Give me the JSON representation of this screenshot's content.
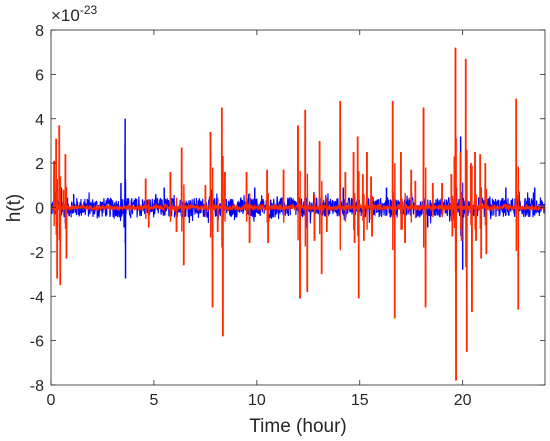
{
  "chart_data": {
    "type": "line",
    "xlabel": "Time (hour)",
    "ylabel": "h(t)",
    "exponent_label": "×10",
    "exponent": "-23",
    "xlim": [
      0,
      24
    ],
    "ylim": [
      -8,
      8
    ],
    "xticks": [
      0,
      5,
      10,
      15,
      20
    ],
    "yticks": [
      -8,
      -6,
      -4,
      -2,
      0,
      2,
      4,
      6,
      8
    ],
    "grid": false,
    "noise_amplitude": {
      "blue": 0.45,
      "red": 0.1
    },
    "series": [
      {
        "color": "#0000ff",
        "spikes": [
          {
            "x": 0.2,
            "y": 0.7
          },
          {
            "x": 0.5,
            "y": 0.9
          },
          {
            "x": 0.7,
            "y": -0.7
          },
          {
            "x": 1.1,
            "y": 0.6
          },
          {
            "x": 3.4,
            "y": 1.1
          },
          {
            "x": 3.55,
            "y": -0.9
          },
          {
            "x": 3.6,
            "y": 4.0
          },
          {
            "x": 3.62,
            "y": -3.2
          },
          {
            "x": 5.5,
            "y": 0.9
          },
          {
            "x": 7.8,
            "y": 0.8
          },
          {
            "x": 9.9,
            "y": 0.9
          },
          {
            "x": 12.4,
            "y": -0.9
          },
          {
            "x": 14.2,
            "y": 0.9
          },
          {
            "x": 16.3,
            "y": 0.9
          },
          {
            "x": 18.3,
            "y": -0.9
          },
          {
            "x": 19.0,
            "y": 0.8
          },
          {
            "x": 19.7,
            "y": 0.9
          },
          {
            "x": 19.9,
            "y": 3.2
          },
          {
            "x": 20.0,
            "y": -2.8
          },
          {
            "x": 20.2,
            "y": 1.5
          },
          {
            "x": 22.1,
            "y": 0.9
          },
          {
            "x": 23.5,
            "y": 0.9
          }
        ]
      },
      {
        "color": "#ff2a00",
        "spikes": [
          {
            "x": 0.15,
            "y": 2.1
          },
          {
            "x": 0.25,
            "y": 3.1
          },
          {
            "x": 0.3,
            "y": -3.2
          },
          {
            "x": 0.4,
            "y": 3.7
          },
          {
            "x": 0.45,
            "y": -3.5
          },
          {
            "x": 0.6,
            "y": 0.8
          },
          {
            "x": 0.7,
            "y": 2.4
          },
          {
            "x": 0.75,
            "y": -2.3
          },
          {
            "x": 4.6,
            "y": 1.3
          },
          {
            "x": 4.75,
            "y": -0.9
          },
          {
            "x": 5.8,
            "y": 1.6
          },
          {
            "x": 6.1,
            "y": -1.1
          },
          {
            "x": 6.35,
            "y": 2.7
          },
          {
            "x": 6.45,
            "y": -2.6
          },
          {
            "x": 7.5,
            "y": 1.0
          },
          {
            "x": 7.75,
            "y": 3.4
          },
          {
            "x": 7.85,
            "y": -4.5
          },
          {
            "x": 8.1,
            "y": -1.1
          },
          {
            "x": 8.3,
            "y": 4.5
          },
          {
            "x": 8.35,
            "y": -5.8
          },
          {
            "x": 8.45,
            "y": 1.6
          },
          {
            "x": 9.5,
            "y": 1.6
          },
          {
            "x": 9.65,
            "y": -1.6
          },
          {
            "x": 10.5,
            "y": 1.7
          },
          {
            "x": 10.55,
            "y": -1.6
          },
          {
            "x": 11.3,
            "y": 1.7
          },
          {
            "x": 12.0,
            "y": 3.7
          },
          {
            "x": 12.1,
            "y": -4.1
          },
          {
            "x": 12.35,
            "y": 4.4
          },
          {
            "x": 12.45,
            "y": -3.8
          },
          {
            "x": 12.8,
            "y": -1.5
          },
          {
            "x": 13.05,
            "y": 3.0
          },
          {
            "x": 13.15,
            "y": -3.0
          },
          {
            "x": 13.4,
            "y": -1.1
          },
          {
            "x": 14.05,
            "y": 4.8
          },
          {
            "x": 14.3,
            "y": 1.6
          },
          {
            "x": 14.7,
            "y": 2.5
          },
          {
            "x": 14.75,
            "y": -1.6
          },
          {
            "x": 14.9,
            "y": 3.2
          },
          {
            "x": 14.95,
            "y": -4.1
          },
          {
            "x": 15.15,
            "y": 1.5
          },
          {
            "x": 15.2,
            "y": -1.5
          },
          {
            "x": 15.35,
            "y": 2.5
          },
          {
            "x": 15.55,
            "y": 1.4
          },
          {
            "x": 15.6,
            "y": -1.3
          },
          {
            "x": 16.6,
            "y": 4.8
          },
          {
            "x": 16.7,
            "y": -5.0
          },
          {
            "x": 17.0,
            "y": 2.5
          },
          {
            "x": 17.05,
            "y": -1.0
          },
          {
            "x": 17.2,
            "y": -1.6
          },
          {
            "x": 17.5,
            "y": 1.7
          },
          {
            "x": 17.7,
            "y": 1.2
          },
          {
            "x": 18.1,
            "y": 4.5
          },
          {
            "x": 18.2,
            "y": -4.5
          },
          {
            "x": 18.55,
            "y": 1.1
          },
          {
            "x": 19.0,
            "y": 1.1
          },
          {
            "x": 19.45,
            "y": 1.5
          },
          {
            "x": 19.5,
            "y": -1.3
          },
          {
            "x": 19.6,
            "y": 2.3
          },
          {
            "x": 19.65,
            "y": 7.2
          },
          {
            "x": 19.68,
            "y": -7.8
          },
          {
            "x": 19.9,
            "y": 2.5
          },
          {
            "x": 19.95,
            "y": -1.5
          },
          {
            "x": 20.15,
            "y": 6.7
          },
          {
            "x": 20.2,
            "y": -6.5
          },
          {
            "x": 20.4,
            "y": 2.0
          },
          {
            "x": 20.45,
            "y": -4.7
          },
          {
            "x": 20.6,
            "y": 2.5
          },
          {
            "x": 20.65,
            "y": -1.5
          },
          {
            "x": 20.85,
            "y": 2.4
          },
          {
            "x": 20.9,
            "y": -2.3
          },
          {
            "x": 21.1,
            "y": 2.0
          },
          {
            "x": 21.15,
            "y": -2.1
          },
          {
            "x": 22.6,
            "y": 4.9
          },
          {
            "x": 22.7,
            "y": -4.6
          }
        ]
      }
    ]
  }
}
